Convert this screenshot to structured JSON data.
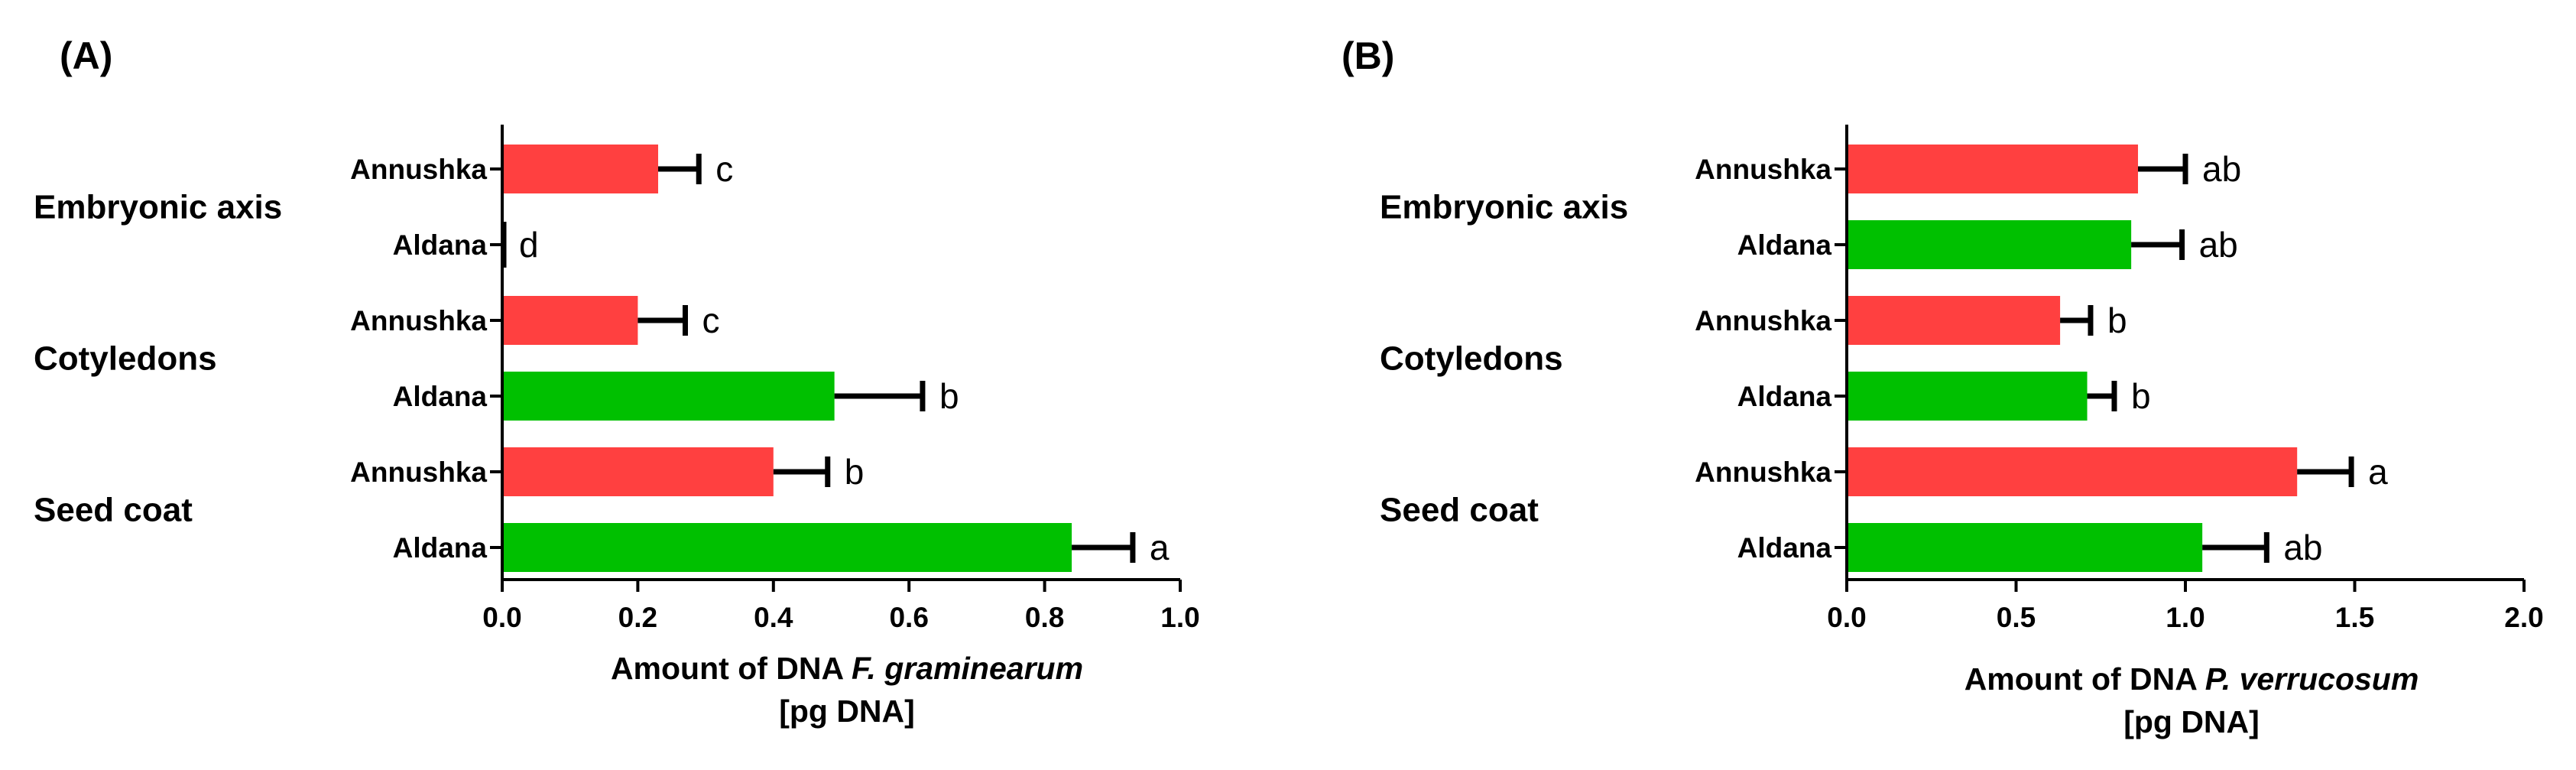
{
  "colors": {
    "annushka": "#ff4040",
    "aldana": "#00c000",
    "axis": "#000000"
  },
  "chart_data": [
    {
      "type": "bar",
      "orientation": "horizontal",
      "panel_label": "(A)",
      "groups": [
        "Embryonic axis",
        "Cotyledons",
        "Seed coat"
      ],
      "bars": [
        {
          "group": "Embryonic axis",
          "category": "Annushka",
          "value": 0.23,
          "error": 0.06,
          "letter": "c"
        },
        {
          "group": "Embryonic axis",
          "category": "Aldana",
          "value": 0.0,
          "error": 0.0,
          "letter": "d"
        },
        {
          "group": "Cotyledons",
          "category": "Annushka",
          "value": 0.2,
          "error": 0.07,
          "letter": "c"
        },
        {
          "group": "Cotyledons",
          "category": "Aldana",
          "value": 0.49,
          "error": 0.13,
          "letter": "b"
        },
        {
          "group": "Seed coat",
          "category": "Annushka",
          "value": 0.4,
          "error": 0.08,
          "letter": "b"
        },
        {
          "group": "Seed coat",
          "category": "Aldana",
          "value": 0.84,
          "error": 0.09,
          "letter": "a"
        }
      ],
      "xlabel_prefix": "Amount of DNA ",
      "xlabel_species": "F. graminearum",
      "xlabel_unit": "[pg DNA]",
      "xlim": [
        0,
        1.0
      ],
      "xticks": [
        "0.0",
        "0.2",
        "0.4",
        "0.6",
        "0.8",
        "1.0"
      ],
      "grid": false
    },
    {
      "type": "bar",
      "orientation": "horizontal",
      "panel_label": "(B)",
      "groups": [
        "Embryonic axis",
        "Cotyledons",
        "Seed coat"
      ],
      "bars": [
        {
          "group": "Embryonic axis",
          "category": "Annushka",
          "value": 0.86,
          "error": 0.14,
          "letter": "ab"
        },
        {
          "group": "Embryonic axis",
          "category": "Aldana",
          "value": 0.84,
          "error": 0.15,
          "letter": "ab"
        },
        {
          "group": "Cotyledons",
          "category": "Annushka",
          "value": 0.63,
          "error": 0.09,
          "letter": "b"
        },
        {
          "group": "Cotyledons",
          "category": "Aldana",
          "value": 0.71,
          "error": 0.08,
          "letter": "b"
        },
        {
          "group": "Seed coat",
          "category": "Annushka",
          "value": 1.33,
          "error": 0.16,
          "letter": "a"
        },
        {
          "group": "Seed coat",
          "category": "Aldana",
          "value": 1.05,
          "error": 0.19,
          "letter": "ab"
        }
      ],
      "xlabel_prefix": "Amount of DNA ",
      "xlabel_species": "P. verrucosum",
      "xlabel_unit": "[pg DNA]",
      "xlim": [
        0,
        2.0
      ],
      "xticks": [
        "0.0",
        "0.5",
        "1.0",
        "1.5",
        "2.0"
      ],
      "grid": false
    }
  ]
}
